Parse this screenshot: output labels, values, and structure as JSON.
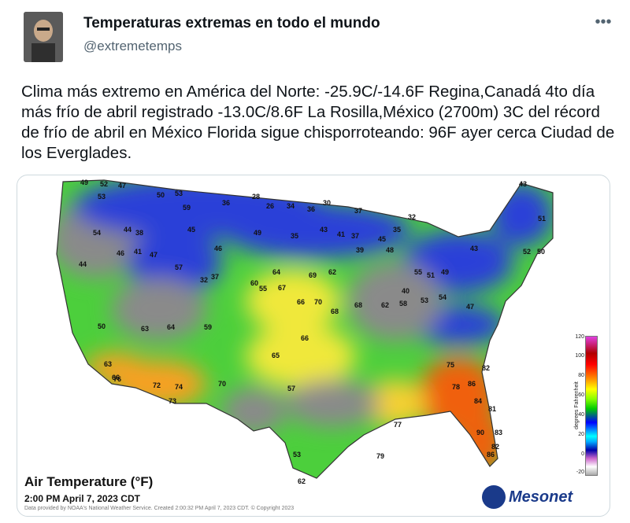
{
  "tweet": {
    "display_name": "Temperaturas extremas en todo el mundo",
    "handle": "@extremetemps",
    "more_icon": "ellipsis-icon",
    "text": "Clima más extremo en América del Norte: -25.9C/-14.6F Regina,Canadá 4to día más frío de abril registrado -13.0C/8.6F La Rosilla,México (2700m) 3C del récord de frío de abril en México Florida sigue chisporroteando: 96F ayer cerca Ciudad de los Everglades."
  },
  "map": {
    "title": "Air Temperature (°F)",
    "date": "2:00 PM April 7, 2023 CDT",
    "credit": "Data provided by NOAA's National Weather Service. Created 2:00:32 PM April 7, 2023 CDT. © Copyright 2023",
    "legend_label": "degrees Fahrenheit",
    "legend_ticks": [
      "120",
      "100",
      "80",
      "60",
      "40",
      "20",
      "0",
      "-20"
    ],
    "logo_text": "Mesonet",
    "colors": {
      "cold": "#2a3fd8",
      "cool": "#8a8a8a",
      "mild": "#3fcf3f",
      "warm": "#f7e23a",
      "hot": "#f06010"
    },
    "station_values": [
      {
        "v": "49"
      },
      {
        "v": "52"
      },
      {
        "v": "47"
      },
      {
        "v": "53"
      },
      {
        "v": "50"
      },
      {
        "v": "53"
      },
      {
        "v": "59"
      },
      {
        "v": "28"
      },
      {
        "v": "36"
      },
      {
        "v": "26"
      },
      {
        "v": "34"
      },
      {
        "v": "36"
      },
      {
        "v": "30"
      },
      {
        "v": "37"
      },
      {
        "v": "32"
      },
      {
        "v": "35"
      },
      {
        "v": "43"
      },
      {
        "v": "51"
      },
      {
        "v": "54"
      },
      {
        "v": "44"
      },
      {
        "v": "38"
      },
      {
        "v": "45"
      },
      {
        "v": "49"
      },
      {
        "v": "35"
      },
      {
        "v": "43"
      },
      {
        "v": "41"
      },
      {
        "v": "37"
      },
      {
        "v": "39"
      },
      {
        "v": "45"
      },
      {
        "v": "48"
      },
      {
        "v": "46"
      },
      {
        "v": "43"
      },
      {
        "v": "52"
      },
      {
        "v": "50"
      },
      {
        "v": "44"
      },
      {
        "v": "46"
      },
      {
        "v": "41"
      },
      {
        "v": "47"
      },
      {
        "v": "57"
      },
      {
        "v": "32"
      },
      {
        "v": "37"
      },
      {
        "v": "60"
      },
      {
        "v": "64"
      },
      {
        "v": "69"
      },
      {
        "v": "62"
      },
      {
        "v": "55"
      },
      {
        "v": "51"
      },
      {
        "v": "49"
      },
      {
        "v": "40"
      },
      {
        "v": "55"
      },
      {
        "v": "67"
      },
      {
        "v": "66"
      },
      {
        "v": "70"
      },
      {
        "v": "68"
      },
      {
        "v": "68"
      },
      {
        "v": "62"
      },
      {
        "v": "58"
      },
      {
        "v": "53"
      },
      {
        "v": "54"
      },
      {
        "v": "47"
      },
      {
        "v": "50"
      },
      {
        "v": "63"
      },
      {
        "v": "64"
      },
      {
        "v": "59"
      },
      {
        "v": "66"
      },
      {
        "v": "72"
      },
      {
        "v": "74"
      },
      {
        "v": "73"
      },
      {
        "v": "70"
      },
      {
        "v": "65"
      },
      {
        "v": "57"
      },
      {
        "v": "75"
      },
      {
        "v": "82"
      },
      {
        "v": "78"
      },
      {
        "v": "86"
      },
      {
        "v": "84"
      },
      {
        "v": "81"
      },
      {
        "v": "90"
      },
      {
        "v": "83"
      },
      {
        "v": "86"
      },
      {
        "v": "82"
      },
      {
        "v": "77"
      },
      {
        "v": "79"
      },
      {
        "v": "62"
      },
      {
        "v": "53"
      },
      {
        "v": "63"
      },
      {
        "v": "76"
      },
      {
        "v": "66"
      }
    ]
  }
}
